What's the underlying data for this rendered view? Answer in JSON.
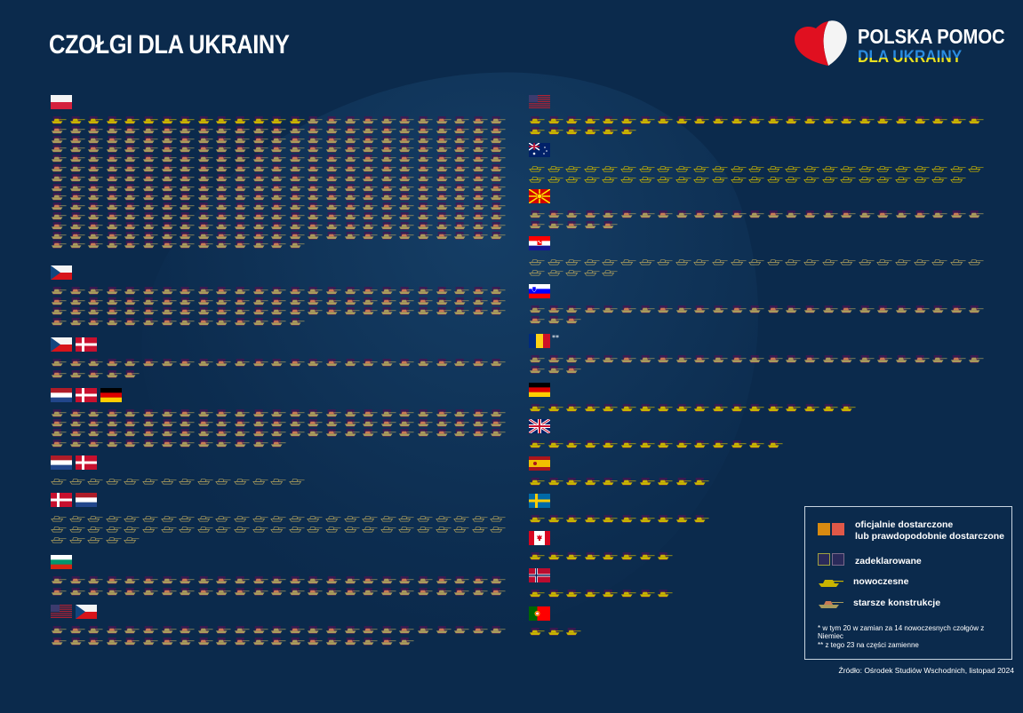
{
  "title": "CZOŁGI DLA UKRAINY",
  "logo": {
    "line1": "POLSKA POMOC",
    "line2": "DLA UKRAINY"
  },
  "colors": {
    "background": "#0b2a4c",
    "modern": "#c9b400",
    "older": "#a99b5c",
    "older_alt": "#c97a55",
    "delivered_bg": "#4a1450",
    "declared_outline": "#9a9a6a"
  },
  "groups_left": [
    {
      "flags": [
        "pl"
      ],
      "modern": 14,
      "older": 325,
      "status": "delivered"
    },
    {
      "flags": [
        "cz"
      ],
      "modern": 0,
      "older": 89,
      "status": "delivered"
    },
    {
      "flags": [
        "cz",
        "dk"
      ],
      "modern": 0,
      "older": 30,
      "status": "delivered"
    },
    {
      "flags": [
        "nl",
        "dk",
        "de"
      ],
      "modern": 0,
      "older": 88,
      "status": "delivered"
    },
    {
      "flags": [
        "nl",
        "dk"
      ],
      "modern": 0,
      "older": 14,
      "status": "declared"
    },
    {
      "flags": [
        "dk",
        "nl"
      ],
      "modern": 0,
      "older": 55,
      "status": "declared"
    },
    {
      "flags": [
        "bg"
      ],
      "modern": 0,
      "older": 50,
      "status": "delivered"
    },
    {
      "flags": [
        "us",
        "cz"
      ],
      "modern": 0,
      "older": 45,
      "status": "delivered"
    }
  ],
  "groups_right": [
    {
      "flags": [
        "us"
      ],
      "modern": 31,
      "older": 0,
      "status": "delivered"
    },
    {
      "flags": [
        "au"
      ],
      "modern": 49,
      "older": 0,
      "status": "declared"
    },
    {
      "flags": [
        "mk"
      ],
      "modern": 0,
      "older": 30,
      "status": "delivered"
    },
    {
      "flags": [
        "hr"
      ],
      "modern": 0,
      "older": 30,
      "status": "declared"
    },
    {
      "flags": [
        "si"
      ],
      "modern": 0,
      "older": 28,
      "status": "delivered"
    },
    {
      "flags": [
        "ro"
      ],
      "modern": 0,
      "older": 28,
      "status": "delivered",
      "mark": "**"
    },
    {
      "flags": [
        "de"
      ],
      "modern": 18,
      "older": 0,
      "status": "delivered"
    },
    {
      "flags": [
        "gb"
      ],
      "modern": 14,
      "older": 0,
      "status": "delivered"
    },
    {
      "flags": [
        "es"
      ],
      "modern": 10,
      "older": 0,
      "status": "delivered"
    },
    {
      "flags": [
        "se"
      ],
      "modern": 10,
      "older": 0,
      "status": "delivered"
    },
    {
      "flags": [
        "ca"
      ],
      "modern": 8,
      "older": 0,
      "status": "delivered"
    },
    {
      "flags": [
        "no"
      ],
      "modern": 8,
      "older": 0,
      "status": "delivered"
    },
    {
      "flags": [
        "pt"
      ],
      "modern": 3,
      "older": 0,
      "status": "delivered"
    }
  ],
  "legend": {
    "delivered": "oficjalnie dostarczone",
    "delivered2": "lub prawdopodobnie dostarczone",
    "declared": "zadeklarowane",
    "modern": "nowoczesne",
    "older": "starsze konstrukcje",
    "note1": "* w tym 20 w zamian za 14 nowoczesnych czołgów z Niemiec",
    "note2": "** z tego 23 na części zamienne"
  },
  "source": "Źródło: Ośrodek Studiów Wschodnich, listopad 2024"
}
